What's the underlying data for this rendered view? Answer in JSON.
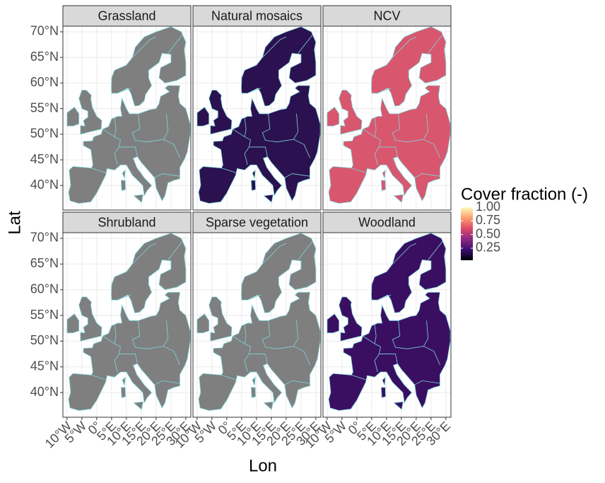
{
  "chart_data": {
    "type": "map",
    "x_label": "Lon",
    "y_label": "Lat",
    "xlim": [
      -11.4,
      31.7
    ],
    "ylim": [
      35.2,
      71.1
    ],
    "xticks": [
      {
        "value": -10,
        "label": "10°W"
      },
      {
        "value": -5,
        "label": "5°W"
      },
      {
        "value": 0,
        "label": "0°"
      },
      {
        "value": 5,
        "label": "5°E"
      },
      {
        "value": 10,
        "label": "10°E"
      },
      {
        "value": 15,
        "label": "15°E"
      },
      {
        "value": 20,
        "label": "20°E"
      },
      {
        "value": 25,
        "label": "25°E"
      },
      {
        "value": 30,
        "label": "30°E"
      }
    ],
    "yticks": [
      {
        "value": 40,
        "label": "40°N"
      },
      {
        "value": 45,
        "label": "45°N"
      },
      {
        "value": 50,
        "label": "50°N"
      },
      {
        "value": 55,
        "label": "55°N"
      },
      {
        "value": 60,
        "label": "60°N"
      },
      {
        "value": 65,
        "label": "65°N"
      },
      {
        "value": 70,
        "label": "70°N"
      }
    ],
    "grid": true,
    "panels": [
      {
        "title": "Grassland",
        "color": "#7f7f7f"
      },
      {
        "title": "Natural mosaics",
        "color": "#2b1150"
      },
      {
        "title": "NCV",
        "color": "#d9576e"
      },
      {
        "title": "Shrubland",
        "color": "#7f7f7f"
      },
      {
        "title": "Sparse vegetation",
        "color": "#7f7f7f"
      },
      {
        "title": "Woodland",
        "color": "#3a0f62"
      }
    ],
    "legend": {
      "title": "Cover fraction (-)",
      "lim": [
        0.03,
        1
      ],
      "ticks": [
        0.25,
        {
          "value": 0.5,
          "label": "0.50"
        },
        0.75,
        {
          "value": 1,
          "label": "1.00"
        }
      ],
      "colors": [
        "#000004",
        "#3b0f70",
        "#8c2981",
        "#de4968",
        "#fe9f6d",
        "#fcfdbf"
      ]
    }
  }
}
